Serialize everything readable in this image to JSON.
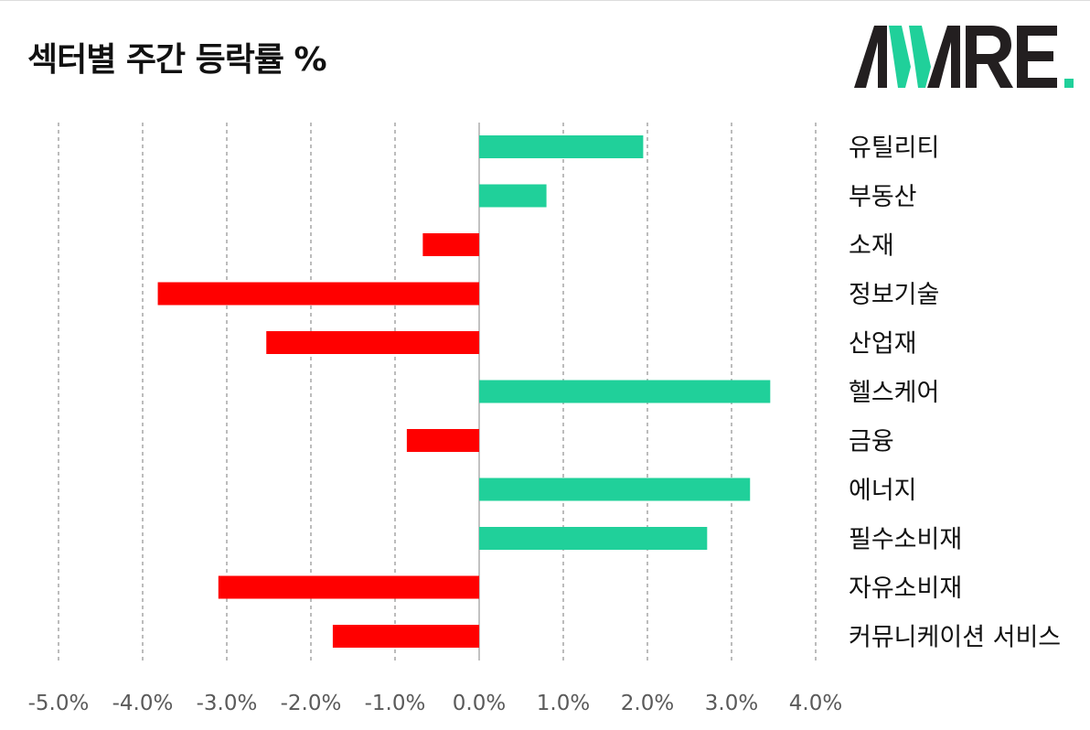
{
  "title": "섹터별 주간 등락률 %",
  "logo": {
    "text": "AWARE",
    "accent_color": "#20d09a",
    "dark_color": "#231f20"
  },
  "colors": {
    "positive": "#20d09a",
    "negative": "#ff0000",
    "grid": "#7a7a7a",
    "axis": "#9a9a9a"
  },
  "chart_data": {
    "type": "bar",
    "orientation": "horizontal",
    "title": "섹터별 주간 등락률 %",
    "categories": [
      "유틸리티",
      "부동산",
      "소재",
      "정보기술",
      "산업재",
      "헬스케어",
      "금융",
      "에너지",
      "필수소비재",
      "자유소비재",
      "커뮤니케이션 서비스"
    ],
    "values": [
      1.95,
      0.8,
      -0.67,
      -3.82,
      -2.53,
      3.46,
      -0.86,
      3.22,
      2.71,
      -3.1,
      -1.74
    ],
    "xlim": [
      -5,
      4
    ],
    "ticks": [
      "-5.0%",
      "-4.0%",
      "-3.0%",
      "-2.0%",
      "-1.0%",
      "0.0%",
      "1.0%",
      "2.0%",
      "3.0%",
      "4.0%"
    ],
    "grid": true,
    "label_position": "right"
  }
}
